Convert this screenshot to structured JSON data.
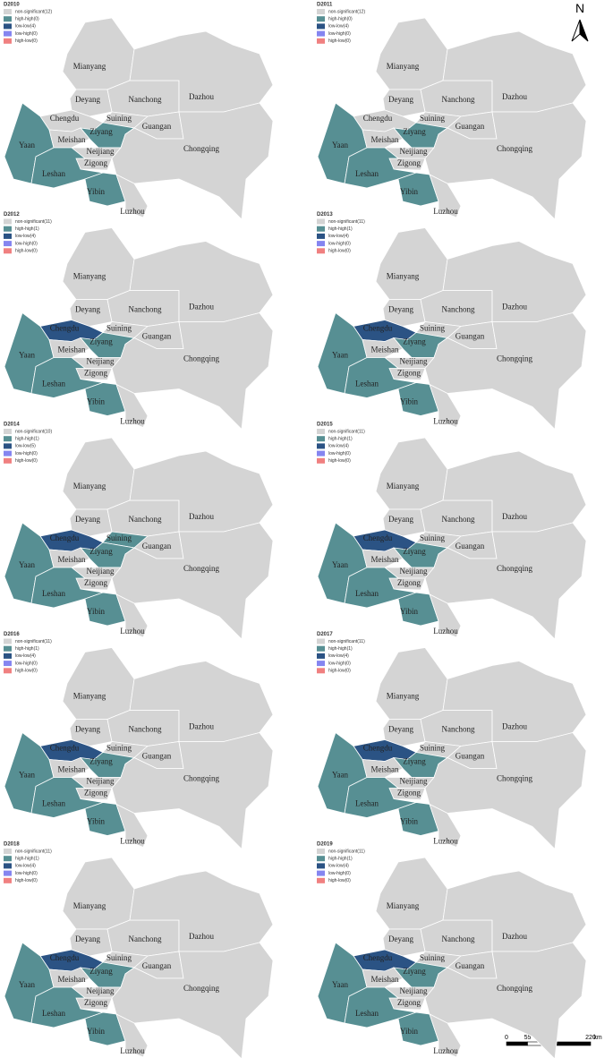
{
  "north": "N",
  "legend_colors": [
    "#d4d4d4",
    "#578f93",
    "#2b5384",
    "#8585f0",
    "#f08080"
  ],
  "city_labels": [
    "Mianyang",
    "Deyang",
    "Nanchong",
    "Dazhou",
    "Chengdu",
    "Suining",
    "Guangan",
    "Ziyang",
    "Yaan",
    "Meishan",
    "Neijiang",
    "Chongqing",
    "Zigong",
    "Leshan",
    "Yibin",
    "Luzhou"
  ],
  "panels": [
    {
      "title": "D2010",
      "legend": [
        "non-significant(12)",
        "high-high(0)",
        "low-low(4)",
        "low-high(0)",
        "high-low(0)"
      ],
      "fills": [
        "#d4d4d4",
        "#d4d4d4",
        "#d4d4d4",
        "#d4d4d4",
        "#d4d4d4",
        "#d4d4d4",
        "#d4d4d4",
        "#578f93",
        "#578f93",
        "#d4d4d4",
        "#d4d4d4",
        "#d4d4d4",
        "#d4d4d4",
        "#578f93",
        "#578f93",
        "#d4d4d4"
      ]
    },
    {
      "title": "D2011",
      "legend": [
        "non-significant(12)",
        "high-high(0)",
        "low-low(4)",
        "low-high(0)",
        "high-low(0)"
      ],
      "fills": [
        "#d4d4d4",
        "#d4d4d4",
        "#d4d4d4",
        "#d4d4d4",
        "#d4d4d4",
        "#d4d4d4",
        "#d4d4d4",
        "#578f93",
        "#578f93",
        "#d4d4d4",
        "#d4d4d4",
        "#d4d4d4",
        "#d4d4d4",
        "#578f93",
        "#578f93",
        "#d4d4d4"
      ]
    },
    {
      "title": "D2012",
      "legend": [
        "non-significant(11)",
        "high-high(1)",
        "low-low(4)",
        "low-high(0)",
        "high-low(0)"
      ],
      "fills": [
        "#d4d4d4",
        "#d4d4d4",
        "#d4d4d4",
        "#d4d4d4",
        "#2b5384",
        "#d4d4d4",
        "#d4d4d4",
        "#578f93",
        "#578f93",
        "#d4d4d4",
        "#d4d4d4",
        "#d4d4d4",
        "#d4d4d4",
        "#578f93",
        "#578f93",
        "#d4d4d4"
      ]
    },
    {
      "title": "D2013",
      "legend": [
        "non-significant(11)",
        "high-high(1)",
        "low-low(4)",
        "low-high(0)",
        "high-low(0)"
      ],
      "fills": [
        "#d4d4d4",
        "#d4d4d4",
        "#d4d4d4",
        "#d4d4d4",
        "#2b5384",
        "#d4d4d4",
        "#d4d4d4",
        "#578f93",
        "#578f93",
        "#d4d4d4",
        "#d4d4d4",
        "#d4d4d4",
        "#d4d4d4",
        "#578f93",
        "#578f93",
        "#d4d4d4"
      ]
    },
    {
      "title": "D2014",
      "legend": [
        "non-significant(10)",
        "high-high(1)",
        "low-low(5)",
        "low-high(0)",
        "high-low(0)"
      ],
      "fills": [
        "#d4d4d4",
        "#d4d4d4",
        "#d4d4d4",
        "#d4d4d4",
        "#2b5384",
        "#578f93",
        "#d4d4d4",
        "#578f93",
        "#578f93",
        "#d4d4d4",
        "#d4d4d4",
        "#d4d4d4",
        "#d4d4d4",
        "#578f93",
        "#578f93",
        "#d4d4d4"
      ]
    },
    {
      "title": "D2015",
      "legend": [
        "non-significant(11)",
        "high-high(1)",
        "low-low(4)",
        "low-high(0)",
        "high-low(0)"
      ],
      "fills": [
        "#d4d4d4",
        "#d4d4d4",
        "#d4d4d4",
        "#d4d4d4",
        "#2b5384",
        "#d4d4d4",
        "#d4d4d4",
        "#578f93",
        "#578f93",
        "#d4d4d4",
        "#d4d4d4",
        "#d4d4d4",
        "#d4d4d4",
        "#578f93",
        "#578f93",
        "#d4d4d4"
      ]
    },
    {
      "title": "D2016",
      "legend": [
        "non-significant(11)",
        "high-high(1)",
        "low-low(4)",
        "low-high(0)",
        "high-low(0)"
      ],
      "fills": [
        "#d4d4d4",
        "#d4d4d4",
        "#d4d4d4",
        "#d4d4d4",
        "#2b5384",
        "#d4d4d4",
        "#d4d4d4",
        "#578f93",
        "#578f93",
        "#d4d4d4",
        "#d4d4d4",
        "#d4d4d4",
        "#d4d4d4",
        "#578f93",
        "#578f93",
        "#d4d4d4"
      ]
    },
    {
      "title": "D2017",
      "legend": [
        "non-significant(11)",
        "high-high(1)",
        "low-low(4)",
        "low-high(0)",
        "high-low(0)"
      ],
      "fills": [
        "#d4d4d4",
        "#d4d4d4",
        "#d4d4d4",
        "#d4d4d4",
        "#2b5384",
        "#d4d4d4",
        "#d4d4d4",
        "#578f93",
        "#578f93",
        "#d4d4d4",
        "#d4d4d4",
        "#d4d4d4",
        "#d4d4d4",
        "#578f93",
        "#578f93",
        "#d4d4d4"
      ]
    },
    {
      "title": "D2018",
      "legend": [
        "non-significant(11)",
        "high-high(1)",
        "low-low(4)",
        "low-high(0)",
        "high-low(0)"
      ],
      "fills": [
        "#d4d4d4",
        "#d4d4d4",
        "#d4d4d4",
        "#d4d4d4",
        "#2b5384",
        "#d4d4d4",
        "#d4d4d4",
        "#578f93",
        "#578f93",
        "#d4d4d4",
        "#d4d4d4",
        "#d4d4d4",
        "#d4d4d4",
        "#578f93",
        "#578f93",
        "#d4d4d4"
      ]
    },
    {
      "title": "D2019",
      "legend": [
        "non-significant(11)",
        "high-high(1)",
        "low-low(4)",
        "low-high(0)",
        "high-low(0)"
      ],
      "fills": [
        "#d4d4d4",
        "#d4d4d4",
        "#d4d4d4",
        "#d4d4d4",
        "#2b5384",
        "#d4d4d4",
        "#d4d4d4",
        "#578f93",
        "#578f93",
        "#d4d4d4",
        "#d4d4d4",
        "#d4d4d4",
        "#d4d4d4",
        "#578f93",
        "#578f93",
        "#d4d4d4"
      ]
    }
  ],
  "scale_bar": {
    "ticks": [
      0,
      55,
      110,
      220
    ],
    "unit": "km"
  }
}
